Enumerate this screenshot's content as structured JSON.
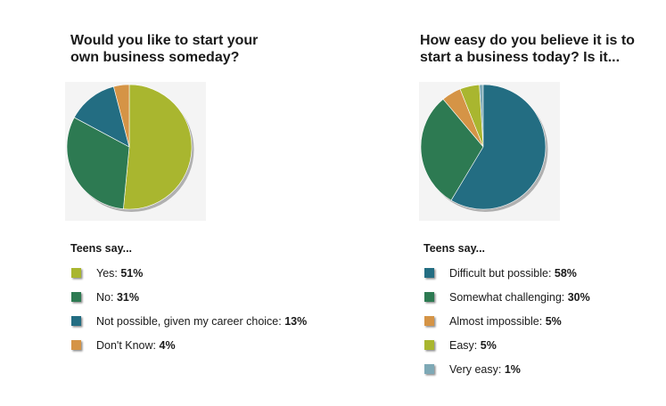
{
  "chart_data": [
    {
      "type": "pie",
      "title": "Would you like to start your\nown business someday?",
      "legend_heading": "Teens say...",
      "slices": [
        {
          "label": "Yes:",
          "value": 51,
          "value_text": "51%",
          "color": "#a9b62f"
        },
        {
          "label": "No:",
          "value": 31,
          "value_text": "31%",
          "color": "#2d7a52"
        },
        {
          "label": "Not possible, given my career choice:",
          "value": 13,
          "value_text": "13%",
          "color": "#236d82"
        },
        {
          "label": "Don't Know:",
          "value": 4,
          "value_text": "4%",
          "color": "#d59446"
        }
      ]
    },
    {
      "type": "pie",
      "title": "How easy do you believe it is to\nstart a business today? Is it...",
      "legend_heading": "Teens say...",
      "slices": [
        {
          "label": "Difficult but possible:",
          "value": 58,
          "value_text": "58%",
          "color": "#236d82"
        },
        {
          "label": "Somewhat challenging:",
          "value": 30,
          "value_text": "30%",
          "color": "#2d7a52"
        },
        {
          "label": "Almost impossible:",
          "value": 5,
          "value_text": "5%",
          "color": "#d59446"
        },
        {
          "label": "Easy:",
          "value": 5,
          "value_text": "5%",
          "color": "#a9b62f"
        },
        {
          "label": "Very easy:",
          "value": 1,
          "value_text": "1%",
          "color": "#7ea9b6"
        }
      ]
    }
  ]
}
